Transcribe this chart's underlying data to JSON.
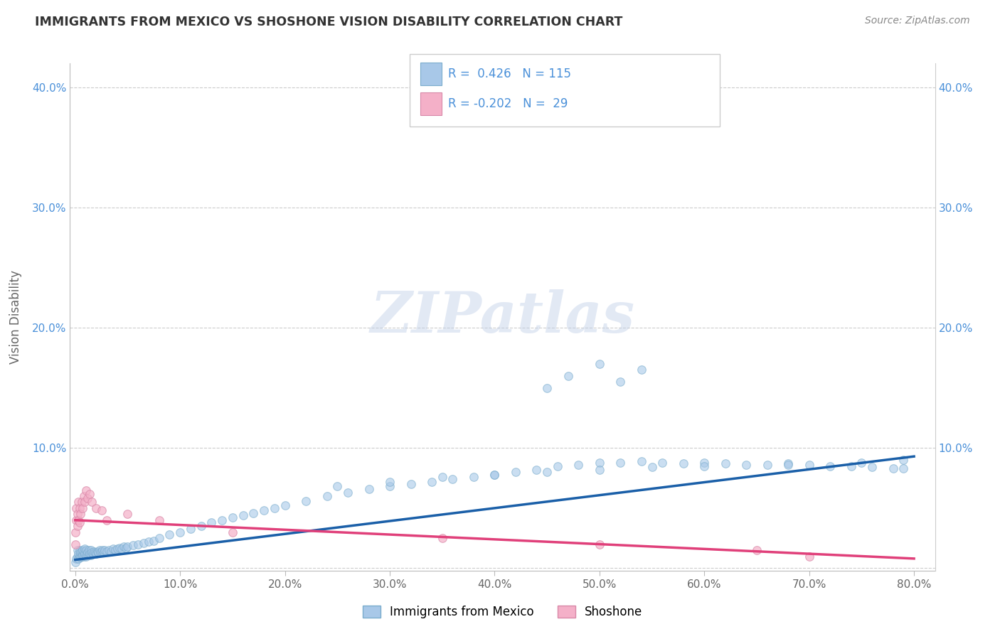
{
  "title": "IMMIGRANTS FROM MEXICO VS SHOSHONE VISION DISABILITY CORRELATION CHART",
  "source": "Source: ZipAtlas.com",
  "ylabel": "Vision Disability",
  "xlim": [
    -0.005,
    0.82
  ],
  "ylim": [
    -0.002,
    0.42
  ],
  "xticks": [
    0.0,
    0.1,
    0.2,
    0.3,
    0.4,
    0.5,
    0.6,
    0.7,
    0.8
  ],
  "yticks": [
    0.0,
    0.1,
    0.2,
    0.3,
    0.4
  ],
  "xticklabels": [
    "0.0%",
    "10.0%",
    "20.0%",
    "30.0%",
    "40.0%",
    "50.0%",
    "60.0%",
    "70.0%",
    "80.0%"
  ],
  "yticklabels_left": [
    "",
    "10.0%",
    "20.0%",
    "30.0%",
    "40.0%"
  ],
  "yticklabels_right": [
    "",
    "10.0%",
    "20.0%",
    "30.0%",
    "40.0%"
  ],
  "blue_color": "#a8c8e8",
  "pink_color": "#f4b0c8",
  "blue_line_color": "#1a5fa8",
  "pink_line_color": "#e0407a",
  "R_blue": 0.426,
  "N_blue": 115,
  "R_pink": -0.202,
  "N_pink": 29,
  "legend_labels": [
    "Immigrants from Mexico",
    "Shoshone"
  ],
  "watermark": "ZIPatlas",
  "blue_scatter_x": [
    0.0,
    0.001,
    0.002,
    0.002,
    0.003,
    0.003,
    0.004,
    0.004,
    0.005,
    0.005,
    0.006,
    0.006,
    0.007,
    0.007,
    0.008,
    0.008,
    0.009,
    0.009,
    0.01,
    0.01,
    0.011,
    0.012,
    0.013,
    0.013,
    0.014,
    0.015,
    0.015,
    0.016,
    0.017,
    0.018,
    0.019,
    0.02,
    0.021,
    0.022,
    0.023,
    0.024,
    0.025,
    0.026,
    0.027,
    0.028,
    0.03,
    0.032,
    0.034,
    0.036,
    0.038,
    0.04,
    0.042,
    0.044,
    0.046,
    0.048,
    0.05,
    0.055,
    0.06,
    0.065,
    0.07,
    0.075,
    0.08,
    0.09,
    0.1,
    0.11,
    0.12,
    0.13,
    0.14,
    0.15,
    0.16,
    0.17,
    0.18,
    0.19,
    0.2,
    0.22,
    0.24,
    0.26,
    0.28,
    0.3,
    0.32,
    0.34,
    0.36,
    0.38,
    0.4,
    0.42,
    0.44,
    0.46,
    0.48,
    0.5,
    0.52,
    0.54,
    0.56,
    0.58,
    0.6,
    0.62,
    0.64,
    0.66,
    0.68,
    0.7,
    0.72,
    0.74,
    0.76,
    0.78,
    0.79,
    0.47,
    0.5,
    0.52,
    0.45,
    0.54,
    0.79,
    0.75,
    0.68,
    0.6,
    0.55,
    0.5,
    0.45,
    0.4,
    0.35,
    0.3,
    0.25
  ],
  "blue_scatter_y": [
    0.005,
    0.008,
    0.01,
    0.015,
    0.008,
    0.012,
    0.01,
    0.015,
    0.009,
    0.013,
    0.01,
    0.014,
    0.011,
    0.015,
    0.01,
    0.014,
    0.012,
    0.016,
    0.01,
    0.015,
    0.012,
    0.013,
    0.011,
    0.015,
    0.012,
    0.011,
    0.015,
    0.013,
    0.012,
    0.014,
    0.013,
    0.012,
    0.014,
    0.013,
    0.015,
    0.013,
    0.014,
    0.015,
    0.013,
    0.015,
    0.014,
    0.015,
    0.014,
    0.016,
    0.015,
    0.016,
    0.017,
    0.016,
    0.018,
    0.017,
    0.018,
    0.019,
    0.02,
    0.021,
    0.022,
    0.023,
    0.025,
    0.028,
    0.03,
    0.033,
    0.035,
    0.038,
    0.04,
    0.042,
    0.044,
    0.046,
    0.048,
    0.05,
    0.052,
    0.056,
    0.06,
    0.063,
    0.066,
    0.068,
    0.07,
    0.072,
    0.074,
    0.076,
    0.078,
    0.08,
    0.082,
    0.085,
    0.086,
    0.088,
    0.088,
    0.089,
    0.088,
    0.087,
    0.088,
    0.087,
    0.086,
    0.086,
    0.087,
    0.086,
    0.085,
    0.085,
    0.084,
    0.083,
    0.083,
    0.16,
    0.17,
    0.155,
    0.15,
    0.165,
    0.09,
    0.088,
    0.086,
    0.085,
    0.084,
    0.082,
    0.08,
    0.078,
    0.076,
    0.072,
    0.068
  ],
  "pink_scatter_x": [
    0.0,
    0.0,
    0.001,
    0.001,
    0.002,
    0.002,
    0.003,
    0.003,
    0.004,
    0.004,
    0.005,
    0.006,
    0.007,
    0.008,
    0.009,
    0.01,
    0.012,
    0.014,
    0.016,
    0.02,
    0.025,
    0.03,
    0.05,
    0.08,
    0.15,
    0.35,
    0.5,
    0.65,
    0.7
  ],
  "pink_scatter_y": [
    0.02,
    0.03,
    0.04,
    0.05,
    0.035,
    0.045,
    0.04,
    0.055,
    0.038,
    0.05,
    0.045,
    0.055,
    0.05,
    0.06,
    0.055,
    0.065,
    0.058,
    0.062,
    0.055,
    0.05,
    0.048,
    0.04,
    0.045,
    0.04,
    0.03,
    0.025,
    0.02,
    0.015,
    0.01
  ],
  "blue_trend_x": [
    0.0,
    0.8
  ],
  "blue_trend_y": [
    0.007,
    0.093
  ],
  "pink_trend_x": [
    0.0,
    0.8
  ],
  "pink_trend_y": [
    0.04,
    0.008
  ]
}
